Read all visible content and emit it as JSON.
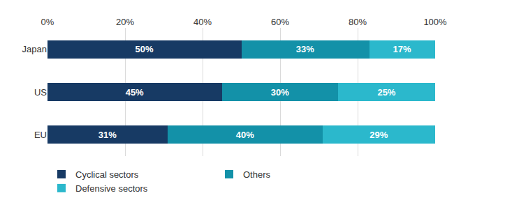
{
  "chart_data": {
    "type": "bar",
    "orientation": "horizontal",
    "stacked": true,
    "data_labels": true,
    "grid": true,
    "legend": "bottom",
    "categories": [
      "Japan",
      "US",
      "EU"
    ],
    "series": [
      {
        "name": "Cyclical sectors",
        "color": "#173a64",
        "values": [
          50,
          45,
          31
        ],
        "value_labels": [
          "50%",
          "45%",
          "31%"
        ]
      },
      {
        "name": "Others",
        "color": "#1391a8",
        "values": [
          33,
          30,
          40
        ],
        "value_labels": [
          "33%",
          "30%",
          "40%"
        ]
      },
      {
        "name": "Defensive sectors",
        "color": "#2bb8cc",
        "values": [
          17,
          25,
          29
        ],
        "value_labels": [
          "17%",
          "25%",
          "29%"
        ]
      }
    ],
    "xlim": [
      0,
      100
    ],
    "xticks": [
      {
        "value": 0,
        "label": "0%"
      },
      {
        "value": 20,
        "label": "20%"
      },
      {
        "value": 40,
        "label": "40%"
      },
      {
        "value": 60,
        "label": "60%"
      },
      {
        "value": 80,
        "label": "80%"
      },
      {
        "value": 100,
        "label": "100%"
      }
    ]
  }
}
